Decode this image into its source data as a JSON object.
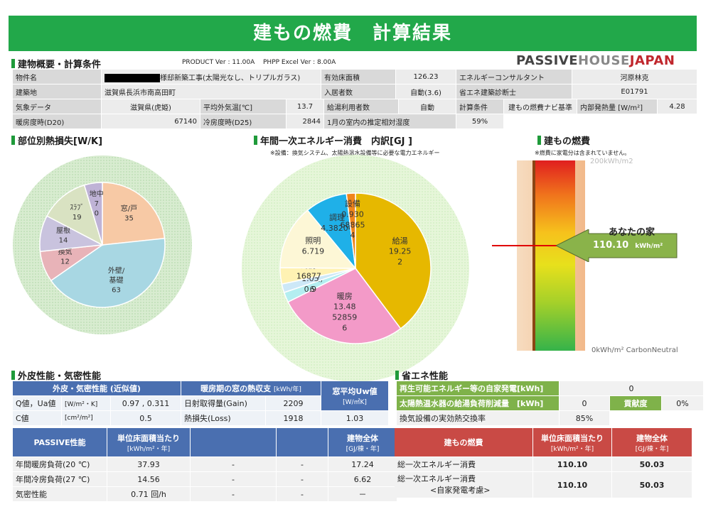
{
  "banner": "建もの燃費　計算結果",
  "overview": {
    "title": "建物概要・計算条件",
    "product_ver": "PRODUCT Ver : 11.00A",
    "phpp_ver": "PHPP Excel Ver : 8.00A",
    "logo_a": "PASSIVE",
    "logo_b": "HOUSE",
    "logo_c": "JAPAN",
    "rows": [
      [
        "物件名",
        "様邸新築工事(太陽光なし、トリプルガラス)",
        "有効床面積",
        "126.23",
        "エネルギーコンサルタント",
        "河原林克"
      ],
      [
        "建築地",
        "滋賀県長浜市南高田町",
        "入居者数",
        "自動(3.6)",
        "省エネ建築診断士",
        "E01791"
      ]
    ],
    "r3": [
      "気象データ",
      "滋賀県(虎姫)",
      "平均外気温[℃]",
      "13.7",
      "給湯利用者数",
      "自動",
      "計算条件",
      "建もの燃費ナビ基準",
      "内部発熱量 [W/m²]",
      "4.28"
    ],
    "r4": [
      "暖房度時(D20)",
      "67140",
      "冷房度時(D25)",
      "2844",
      "1月の室内の推定相対湿度",
      "59%"
    ]
  },
  "heat_loss_title": "部位別熱損失[W/K]",
  "energy_title": "年間一次エネルギー消費　内訳[GJ ]",
  "energy_note": "※設備：換気システム、太陽熱温水設備等に必要な電力エネルギー",
  "fuel_title": "建もの燃費",
  "fuel_note": "※燃費に家電分は含まれていません。",
  "gauge": {
    "top": "200kWh/m2",
    "bottom": "0kWh/m² CarbonNeutral",
    "you": "あなたの家",
    "value": "110.10",
    "unit": "kWh/m²",
    "value_num": 110.1,
    "max": 200
  },
  "chart_data": [
    {
      "type": "pie",
      "title": "部位別熱損失[W/K]",
      "labels": [
        "窓/戸",
        "外壁/基礎",
        "換気",
        "屋根",
        "ｽﾗﾌﾞ",
        "地中"
      ],
      "values": [
        35,
        63,
        12,
        14,
        19,
        7
      ],
      "label_text": [
        [
          "窓/戸",
          "35"
        ],
        [
          "外壁/",
          "基礎",
          "63"
        ],
        [
          "換気",
          "12"
        ],
        [
          "屋根",
          "14"
        ],
        [
          "ｽﾗﾌﾞ",
          "19"
        ],
        [
          "地中",
          "7",
          "0"
        ]
      ],
      "colors": [
        "#f7c9a5",
        "#a8d7e3",
        "#e8b3b8",
        "#c9c3de",
        "#d9e2c2",
        "#bfb3d6"
      ]
    },
    {
      "type": "pie",
      "title": "年間一次エネルギー消費　内訳[GJ ]",
      "labels": [
        "給湯",
        "暖房",
        "潜熱",
        "除湿",
        "冷房",
        "照明",
        "調理",
        "設備"
      ],
      "values": [
        19.252,
        13.48528596,
        1.05,
        0.9,
        1.6877,
        6.719,
        4.38204,
        0.93
      ],
      "label_text": [
        [
          "給湯",
          "19.25",
          "2"
        ],
        [
          "暖房",
          "13.48",
          "52859",
          "6"
        ],
        [
          "(潜熱)",
          "6"
        ],
        [
          "(除湿)",
          "1.05",
          "0.9"
        ],
        [
          "冷房",
          "16877"
        ],
        [
          "照明",
          "6.719"
        ],
        [
          "調理",
          "4.38204"
        ],
        [
          "設備",
          "0.930",
          "68865",
          "4"
        ]
      ],
      "colors": [
        "#e6b800",
        "#f39ac8",
        "#b3eef0",
        "#cde8f7",
        "#fff2b3",
        "#fdf7d6",
        "#1fb0e8",
        "#f0851c"
      ]
    }
  ],
  "envelope": {
    "title": "外皮性能・気密性能",
    "head1": "外皮・気密性能 (近似値)",
    "head2": "暖房期の窓の熱収支",
    "head2_unit": "[kWh/年]",
    "head3": "窓平均Uw値",
    "head3_unit": "[W/㎡K]",
    "q_label": "Q値，Ua値",
    "q_unit": "[W/m²・K]",
    "q_value": "0.97 , 0.311",
    "c_label": "C値",
    "c_unit": "[cm²/m²]",
    "c_value": "0.5",
    "gain_label": "日射取得量(Gain)",
    "gain_value": "2209",
    "loss_label": "熱損失(Loss)",
    "loss_value": "1918",
    "uw_value": "1.03"
  },
  "passive": {
    "head": "PASSIVE性能",
    "col1": "単位床面積当たり",
    "col1_unit": "[kWh/m²・年]",
    "col4": "建物全体",
    "col4_unit": "[GJ/棟・年]",
    "rows": [
      [
        "年間暖房負荷(20 ℃)",
        "37.93",
        "-",
        "-",
        "17.24"
      ],
      [
        "年間冷房負荷(27 ℃)",
        "14.56",
        "-",
        "-",
        "6.62"
      ],
      [
        "気密性能",
        "0.71 回/h",
        "-",
        "-",
        "－"
      ]
    ]
  },
  "eco": {
    "title": "省エネ性能",
    "r1_label": "再生可能エネルギー等の自家発電[kWh]",
    "r1_value": "0",
    "r2_label": "太陽熱温水器の給湯負荷削減量　[kWh]",
    "r2_value": "0",
    "r2_tag": "貢献度",
    "r2_pct": "0%",
    "r3_label": "換気設備の実効熱交換率",
    "r3_value": "85%",
    "head": "建もの燃費",
    "col1": "単位床面積当たり",
    "col1_unit": "[kWh/m²・年]",
    "col2": "建物全体",
    "col2_unit": "[GJ/棟・年]",
    "row1": [
      "総一次エネルギー消費",
      "110.10",
      "50.03"
    ],
    "row2_a": "総一次エネルギー消費",
    "row2_b": "<自家発電考慮>",
    "row2_v1": "110.10",
    "row2_v2": "50.03"
  }
}
